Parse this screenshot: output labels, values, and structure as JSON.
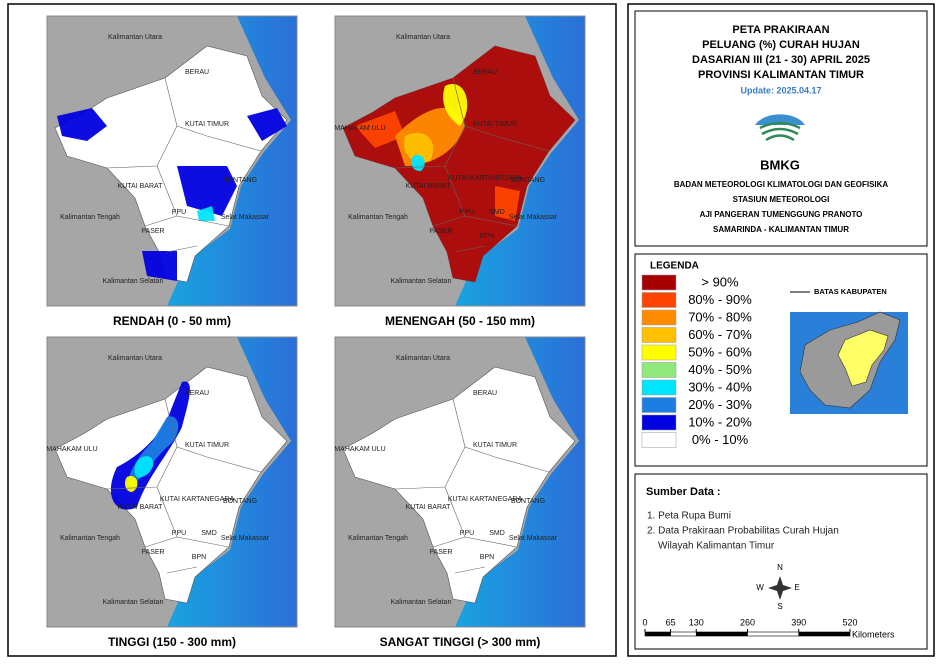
{
  "maps": [
    {
      "caption": "RENDAH (0 - 50 mm)",
      "labels": [
        "Kalimantan Utara",
        "BERAU",
        "KUTAI TIMUR",
        "BONTANG",
        "KUTAI BARAT",
        "Kalimantan Tengah",
        "PPU",
        "Selat Makassar",
        "PASER",
        "Kalimantan Selatan"
      ]
    },
    {
      "caption": "MENENGAH (50 - 150 mm)",
      "labels": [
        "Kalimantan Utara",
        "BERAU",
        "MAHAKAM ULU",
        "KUTAI TIMUR",
        "BONTANG",
        "KUTAI KARTANEGARA",
        "KUTAI BARAT",
        "SMD",
        "BPN",
        "Kalimantan Tengah",
        "PPU",
        "Selat Makassar",
        "PASER",
        "Kalimantan Selatan"
      ]
    },
    {
      "caption": "TINGGI (150 - 300 mm)",
      "labels": [
        "Kalimantan Utara",
        "BERAU",
        "MAHAKAM ULU",
        "KUTAI TIMUR",
        "BONTANG",
        "KUTAI KARTANEGARA",
        "KUTAI BARAT",
        "SMD",
        "BPN",
        "Kalimantan Tengah",
        "PPU",
        "Selat Makassar",
        "PASER",
        "Kalimantan Selatan"
      ]
    },
    {
      "caption": "SANGAT TINGGI (> 300 mm)",
      "labels": [
        "Kalimantan Utara",
        "BERAU",
        "MAHAKAM ULU",
        "KUTAI TIMUR",
        "BONTANG",
        "KUTAI KARTANEGARA",
        "KUTAI BARAT",
        "SMD",
        "BPN",
        "Kalimantan Tengah",
        "PPU",
        "Selat Makassar",
        "PASER",
        "Kalimantan Selatan"
      ]
    }
  ],
  "header": {
    "title_lines": [
      "PETA PRAKIRAAN",
      "PELUANG (%) CURAH HUJAN",
      "DASARIAN III (21 - 30) APRIL 2025",
      "PROVINSI KALIMANTAN TIMUR"
    ],
    "update": "Update: 2025.04.17",
    "logo_text": "BMKG",
    "org_lines": [
      "BADAN METEOROLOGI KLIMATOLOGI DAN GEOFISIKA",
      "STASIUN METEOROLOGI",
      "AJI PANGERAN TUMENGGUNG PRANOTO",
      "SAMARINDA - KALIMANTAN TIMUR"
    ]
  },
  "legend": {
    "title": "LEGENDA",
    "items": [
      {
        "label": "> 90%",
        "color": "#a80000"
      },
      {
        "label": "80% - 90%",
        "color": "#ff4400"
      },
      {
        "label": "70% - 80%",
        "color": "#ff8c00"
      },
      {
        "label": "60% - 70%",
        "color": "#ffc000"
      },
      {
        "label": "50% - 60%",
        "color": "#ffff00"
      },
      {
        "label": "40% - 50%",
        "color": "#8fe87a"
      },
      {
        "label": "30% - 40%",
        "color": "#00e5ff"
      },
      {
        "label": "20% - 30%",
        "color": "#1e7de0"
      },
      {
        "label": "10% - 20%",
        "color": "#0000e0"
      },
      {
        "label": "0% - 10%",
        "color": "#ffffff"
      }
    ],
    "boundary_label": "BATAS KABUPATEN"
  },
  "sources": {
    "title": "Sumber Data :",
    "items": [
      [
        "1. Peta Rupa Bumi"
      ],
      [
        "2. Data Prakiraan Probabilitas Curah Hujan",
        "Wilayah Kalimantan Timur"
      ]
    ]
  },
  "compass": {
    "n": "N",
    "s": "S",
    "e": "E",
    "w": "W"
  },
  "scale": {
    "ticks": [
      0,
      65,
      130,
      260,
      390,
      520
    ],
    "unit": "Kilometers"
  }
}
